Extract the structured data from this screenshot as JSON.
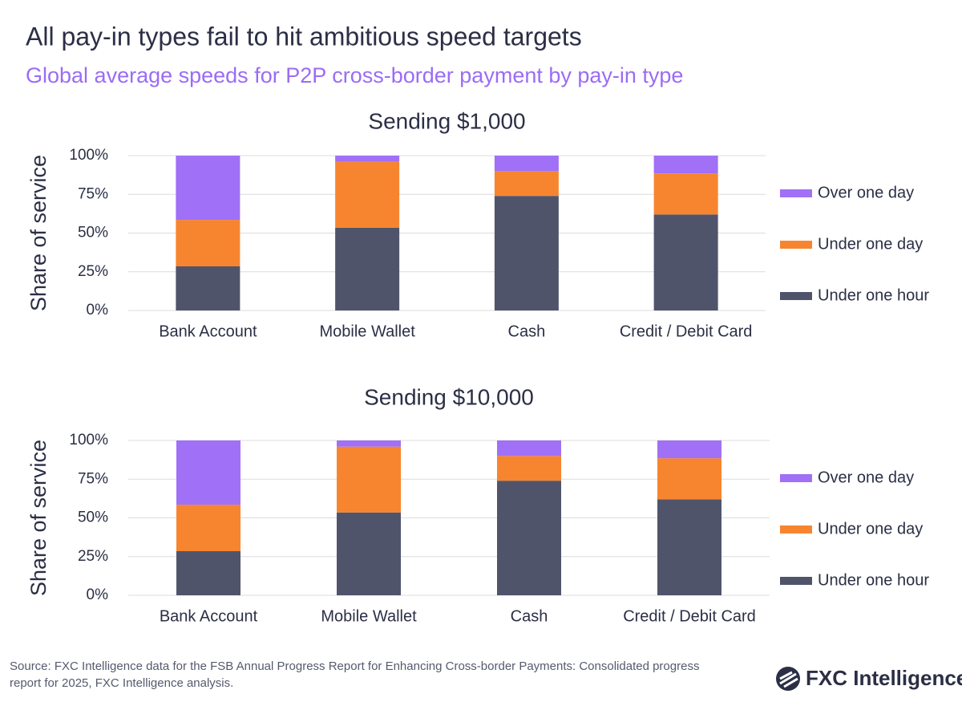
{
  "title": "All pay-in types fail to hit ambitious speed targets",
  "subtitle": "Global average speeds for P2P cross-border payment by pay-in type",
  "source": "Source: FXC Intelligence data for the FSB Annual Progress Report for Enhancing Cross-border Payments: Consolidated progress report for 2025, FXC Intelligence analysis.",
  "logo": "FXC Intelligence",
  "chart_data": [
    {
      "type": "bar",
      "stacked": true,
      "title": "Sending $1,000",
      "y_label": "Share of service",
      "categories": [
        "Bank Account",
        "Mobile Wallet",
        "Cash",
        "Credit / Debit Card"
      ],
      "series": [
        {
          "name": "Under one hour",
          "color": "#50546b",
          "values": [
            28.5,
            53.5,
            74,
            62
          ]
        },
        {
          "name": "Under one day",
          "color": "#f7852f",
          "values": [
            30,
            42.5,
            16,
            26.5
          ]
        },
        {
          "name": "Over one day",
          "color": "#a070f7",
          "values": [
            41.5,
            4,
            10,
            11.5
          ]
        }
      ],
      "ylim": [
        0,
        100
      ],
      "yticks": [
        {
          "value": 0,
          "label": "0%"
        },
        {
          "value": 25,
          "label": "25%"
        },
        {
          "value": 50,
          "label": "50%"
        },
        {
          "value": 75,
          "label": "75%"
        },
        {
          "value": 100,
          "label": "100%"
        }
      ],
      "grid": true,
      "legend": "right"
    },
    {
      "type": "bar",
      "stacked": true,
      "title": "Sending $10,000",
      "y_label": "Share of service",
      "categories": [
        "Bank Account",
        "Mobile Wallet",
        "Cash",
        "Credit / Debit Card"
      ],
      "series": [
        {
          "name": "Under one hour",
          "color": "#50546b",
          "values": [
            28.5,
            53.5,
            74,
            62
          ]
        },
        {
          "name": "Under one day",
          "color": "#f7852f",
          "values": [
            30,
            42.5,
            16,
            26.5
          ]
        },
        {
          "name": "Over one day",
          "color": "#a070f7",
          "values": [
            41.5,
            4,
            10,
            11.5
          ]
        }
      ],
      "ylim": [
        0,
        100
      ],
      "yticks": [
        {
          "value": 0,
          "label": "0%"
        },
        {
          "value": 25,
          "label": "25%"
        },
        {
          "value": 50,
          "label": "50%"
        },
        {
          "value": 75,
          "label": "75%"
        },
        {
          "value": 100,
          "label": "100%"
        }
      ],
      "grid": true,
      "legend": "right"
    }
  ]
}
